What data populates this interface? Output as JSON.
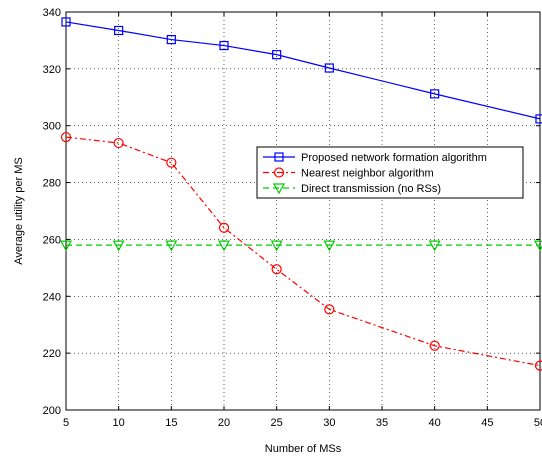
{
  "chart_data": {
    "type": "line",
    "xlabel": "Number of MSs",
    "ylabel": "Average utility per MS",
    "xlim": [
      5,
      50
    ],
    "ylim": [
      200,
      340
    ],
    "xticks": [
      5,
      10,
      15,
      20,
      25,
      30,
      35,
      40,
      45,
      50
    ],
    "yticks": [
      200,
      220,
      240,
      260,
      280,
      300,
      320,
      340
    ],
    "grid": true,
    "legend_position": "center-right",
    "series": [
      {
        "name": "Proposed network formation algorithm",
        "color": "#0000ff",
        "line_style": "solid",
        "marker": "square",
        "x": [
          5,
          10,
          15,
          20,
          25,
          30,
          40,
          50
        ],
        "y": [
          336.5,
          333.5,
          330.3,
          328.2,
          325.0,
          320.3,
          311.2,
          302.4
        ]
      },
      {
        "name": "Nearest neighbor algorithm",
        "color": "#ff0000",
        "line_style": "dashdot",
        "marker": "circle",
        "x": [
          5,
          10,
          15,
          20,
          25,
          30,
          40,
          50
        ],
        "y": [
          296.0,
          293.9,
          287.0,
          264.1,
          249.5,
          235.4,
          222.6,
          215.6
        ]
      },
      {
        "name": "Direct transmission (no RSs)",
        "color": "#00cc00",
        "line_style": "dashed",
        "marker": "triangle-down",
        "x": [
          5,
          10,
          15,
          20,
          25,
          30,
          40,
          50
        ],
        "y": [
          258.0,
          258.0,
          258.0,
          258.0,
          258.0,
          258.0,
          258.0,
          258.0
        ]
      }
    ]
  }
}
